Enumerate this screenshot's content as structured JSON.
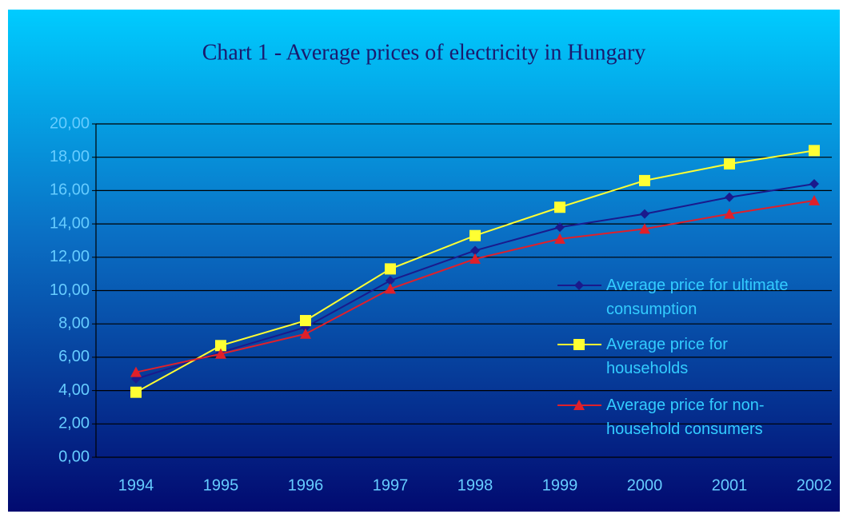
{
  "chart_data": {
    "type": "line",
    "title": "Chart 1 - Average prices of electricity in Hungary",
    "categories": [
      "1994",
      "1995",
      "1996",
      "1997",
      "1998",
      "1999",
      "2000",
      "2001",
      "2002"
    ],
    "series": [
      {
        "name": "Average price for ultimate consumption",
        "color": "#1a1a8c",
        "marker": "diamond",
        "values": [
          4.7,
          6.3,
          7.8,
          10.6,
          12.4,
          13.8,
          14.6,
          15.6,
          16.4
        ]
      },
      {
        "name": "Average price for households",
        "color": "#ffff33",
        "marker": "square",
        "values": [
          3.9,
          6.7,
          8.2,
          11.3,
          13.3,
          15.0,
          16.6,
          17.6,
          18.4
        ]
      },
      {
        "name": "Average price for non-household consumers",
        "color": "#e0202a",
        "marker": "triangle",
        "values": [
          5.1,
          6.2,
          7.4,
          10.1,
          11.9,
          13.1,
          13.7,
          14.6,
          15.4
        ]
      }
    ],
    "ylim": [
      0,
      20
    ],
    "yticks": [
      {
        "value": 0,
        "label": "0,00"
      },
      {
        "value": 2,
        "label": "2,00"
      },
      {
        "value": 4,
        "label": "4,00"
      },
      {
        "value": 6,
        "label": "6,00"
      },
      {
        "value": 8,
        "label": "8,00"
      },
      {
        "value": 10,
        "label": "10,00"
      },
      {
        "value": 12,
        "label": "12,00"
      },
      {
        "value": 14,
        "label": "14,00"
      },
      {
        "value": 16,
        "label": "16,00"
      },
      {
        "value": 18,
        "label": "18,00"
      },
      {
        "value": 20,
        "label": "20,00"
      }
    ],
    "grid": true,
    "legend": "right"
  }
}
